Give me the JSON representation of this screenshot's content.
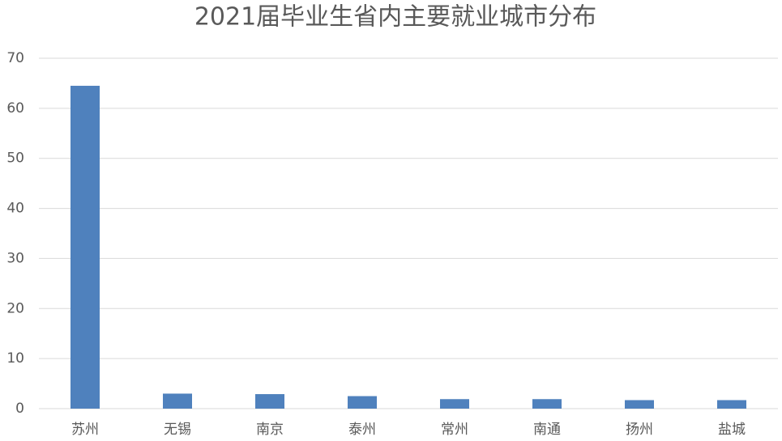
{
  "chart_data": {
    "type": "bar",
    "title": "2021届毕业生省内主要就业城市分布",
    "categories": [
      "苏州",
      "无锡",
      "南京",
      "泰州",
      "常州",
      "南通",
      "扬州",
      "盐城"
    ],
    "values": [
      64.5,
      3.0,
      2.9,
      2.5,
      1.9,
      1.9,
      1.7,
      1.7
    ],
    "color": "#4f81bd",
    "ylim": [
      0,
      70
    ],
    "yticks": [
      0,
      10,
      20,
      30,
      40,
      50,
      60,
      70
    ],
    "grid": true
  }
}
